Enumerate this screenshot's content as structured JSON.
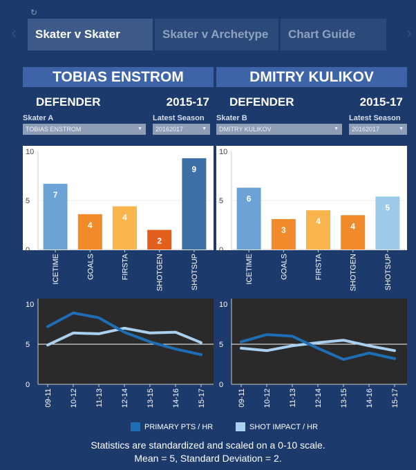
{
  "tabs": [
    {
      "label": "Skater v Skater",
      "active": true
    },
    {
      "label": "Skater v Archetype",
      "active": false
    },
    {
      "label": "Chart Guide",
      "active": false
    }
  ],
  "nav": {
    "prev": "‹",
    "next": "›",
    "reload": "↻"
  },
  "skaters": [
    {
      "name": "TOBIAS ENSTROM",
      "position": "DEFENDER",
      "season_range": "2015-17",
      "selector_label": "Skater A",
      "selector_value": "TOBIAS ENSTROM",
      "season_label": "Latest Season",
      "season_value": "20162017"
    },
    {
      "name": "DMITRY KULIKOV",
      "position": "DEFENDER",
      "season_range": "2015-17",
      "selector_label": "Skater B",
      "selector_value": "DMITRY KULIKOV",
      "season_label": "Latest Season",
      "season_value": "20162017"
    }
  ],
  "chart_data": [
    {
      "type": "bar",
      "categories": [
        "ICETIME",
        "GOALS",
        "FIRSTA",
        "SHOTGEN",
        "SHOTSUP"
      ],
      "values": [
        6.7,
        3.6,
        4.4,
        2.0,
        9.3
      ],
      "data_labels": [
        "7",
        "4",
        "4",
        "2",
        "9"
      ],
      "colors": [
        "#6ba3d6",
        "#f08a2a",
        "#f9b54c",
        "#e35f1b",
        "#3e6ea6"
      ],
      "ylim": [
        0,
        10
      ],
      "yticks": [
        "10",
        "5",
        "0"
      ]
    },
    {
      "type": "bar",
      "categories": [
        "ICETIME",
        "GOALS",
        "FIRSTA",
        "SHOTGEN",
        "SHOTSUP"
      ],
      "values": [
        6.3,
        3.1,
        4.0,
        3.5,
        5.4
      ],
      "data_labels": [
        "6",
        "3",
        "4",
        "4",
        "5"
      ],
      "colors": [
        "#6ba3d6",
        "#f08a2a",
        "#f9b54c",
        "#f08a2a",
        "#9ccbe9"
      ],
      "ylim": [
        0,
        10
      ],
      "yticks": [
        "10",
        "5",
        "0"
      ]
    },
    {
      "type": "line",
      "x": [
        "09-11",
        "10-12",
        "11-13",
        "12-14",
        "13-15",
        "14-16",
        "15-17"
      ],
      "series": [
        {
          "name": "PRIMARY PTS / HR",
          "color": "#1f6eb5",
          "values": [
            7.2,
            8.9,
            8.3,
            6.5,
            5.3,
            4.4,
            3.7
          ]
        },
        {
          "name": "SHOT IMPACT / HR",
          "color": "#a9d0ee",
          "values": [
            4.9,
            6.4,
            6.3,
            7.0,
            6.4,
            6.5,
            5.2
          ]
        }
      ],
      "ylim": [
        0,
        10
      ],
      "yticks": [
        "10",
        "5",
        "0"
      ],
      "reference_line": 5
    },
    {
      "type": "line",
      "x": [
        "09-11",
        "10-12",
        "11-13",
        "12-14",
        "13-15",
        "14-16",
        "15-17"
      ],
      "series": [
        {
          "name": "PRIMARY PTS / HR",
          "color": "#1f6eb5",
          "values": [
            5.3,
            6.2,
            6.0,
            4.5,
            3.1,
            3.9,
            3.2
          ]
        },
        {
          "name": "SHOT IMPACT / HR",
          "color": "#a9d0ee",
          "values": [
            4.5,
            4.2,
            4.8,
            5.2,
            5.5,
            4.8,
            4.2
          ]
        }
      ],
      "ylim": [
        0,
        10
      ],
      "yticks": [
        "10",
        "5",
        "0"
      ],
      "reference_line": 5
    }
  ],
  "legend": [
    {
      "label": "PRIMARY PTS / HR",
      "color": "#1f6eb5"
    },
    {
      "label": "SHOT IMPACT / HR",
      "color": "#a9d0ee"
    }
  ],
  "footnote": {
    "line1": "Statistics are standardized and scaled on a 0-10 scale.",
    "line2": "Mean = 5, Standard Deviation = 2."
  },
  "colors": {
    "background": "#1c3a6b",
    "name_banner": "#3d64a8",
    "line_plot_bg": "#2a2a2a"
  }
}
